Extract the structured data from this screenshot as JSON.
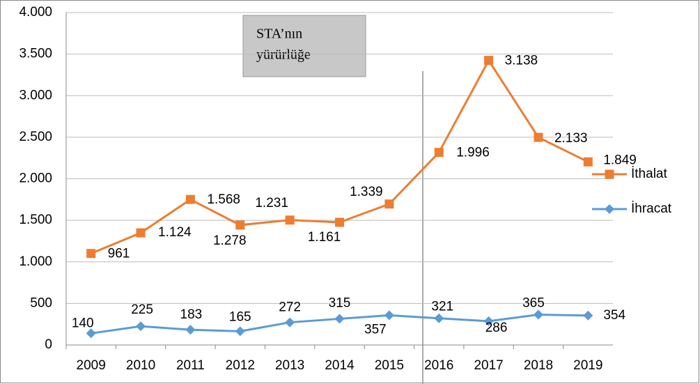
{
  "chart_data": {
    "type": "line",
    "stacked": true,
    "categories": [
      "2009",
      "2010",
      "2011",
      "2012",
      "2013",
      "2014",
      "2015",
      "2016",
      "2017",
      "2018",
      "2019"
    ],
    "series": [
      {
        "name": "İhracat",
        "color": "#5b9bd5",
        "marker": "diamond",
        "values": [
          140,
          225,
          183,
          165,
          272,
          315,
          357,
          321,
          286,
          365,
          354
        ]
      },
      {
        "name": "İthalat",
        "color": "#ed7d31",
        "marker": "square",
        "values": [
          961,
          1124,
          1568,
          1278,
          1231,
          1161,
          1339,
          1996,
          3138,
          2133,
          1849
        ],
        "value_labels": [
          "961",
          "1.124",
          "1.568",
          "1.278",
          "1.231",
          "1.161",
          "1.339",
          "1.996",
          "3.138",
          "2.133",
          "1.849"
        ]
      }
    ],
    "ylim": [
      0,
      4000
    ],
    "yticks": [
      0,
      500,
      {
        "value": 1000,
        "label": "1.000"
      },
      {
        "value": 1500,
        "label": "1.500"
      },
      {
        "value": 2000,
        "label": "2.000"
      },
      {
        "value": 2500,
        "label": "2.500"
      },
      {
        "value": 3000,
        "label": "3.000"
      },
      {
        "value": 3500,
        "label": "3.500"
      },
      {
        "value": 4000,
        "label": "4.000"
      }
    ],
    "grid": true,
    "legend": "right",
    "annotation": [
      "STA’nın",
      "yürürlüğe"
    ]
  }
}
